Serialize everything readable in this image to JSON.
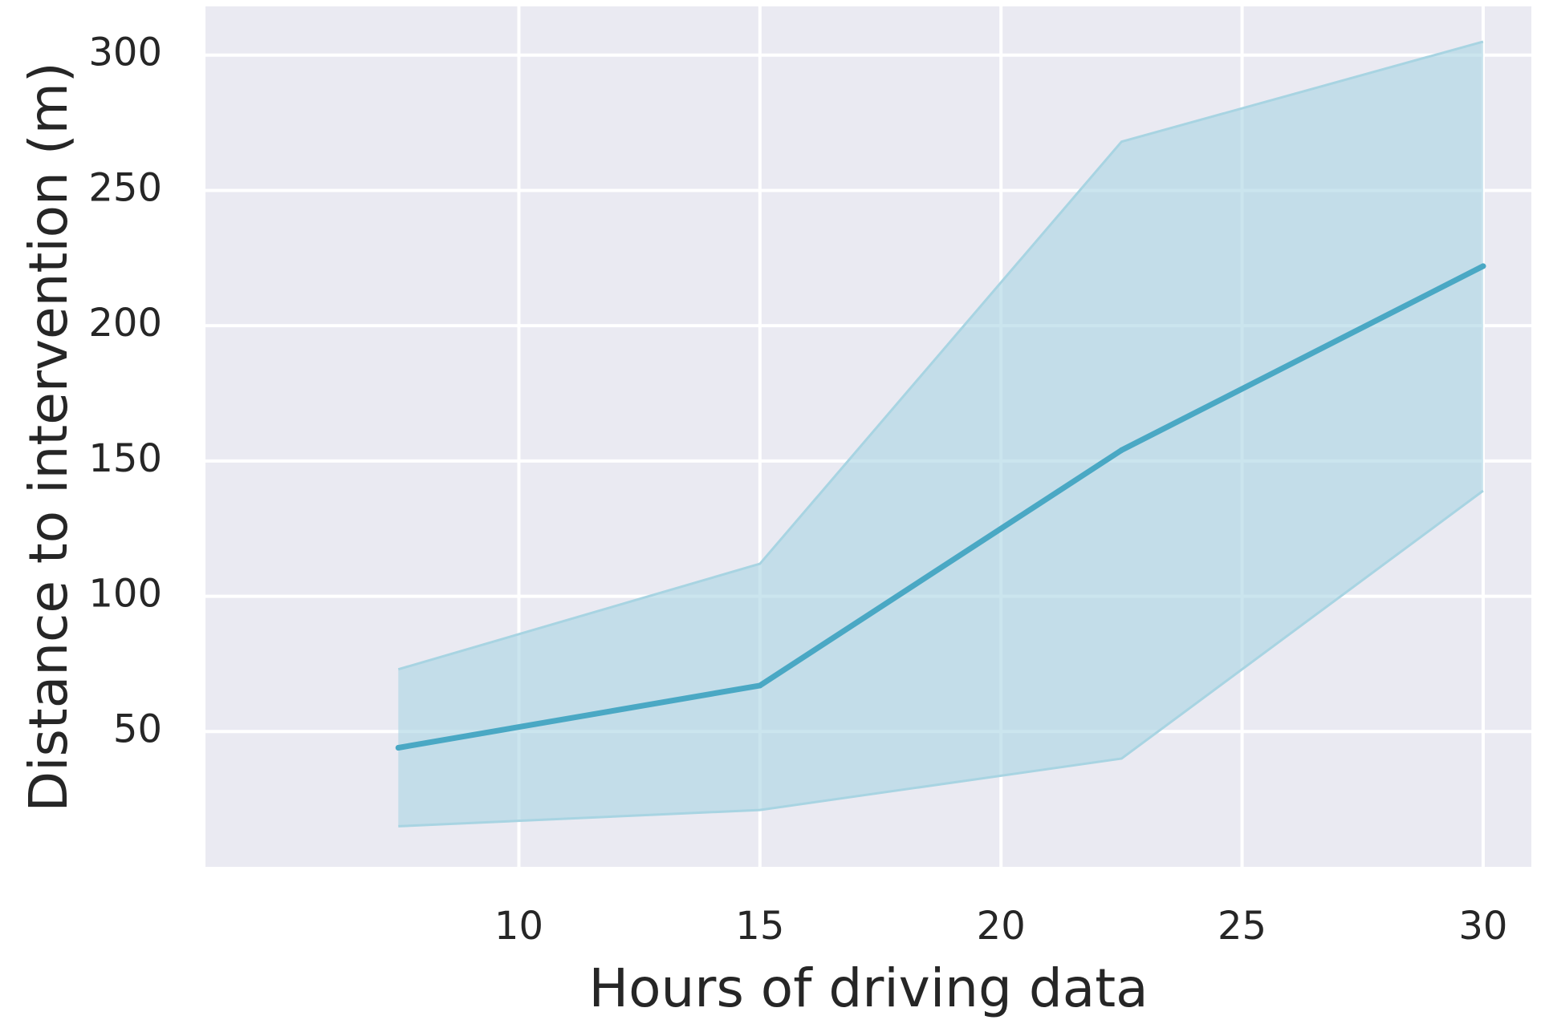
{
  "chart_data": {
    "type": "line",
    "xlabel": "Hours of driving data",
    "ylabel": "Distance to intervention (m)",
    "xlim": [
      3.5,
      31.0
    ],
    "ylim": [
      0,
      318
    ],
    "x_ticks": [
      10,
      15,
      20,
      25,
      30
    ],
    "y_ticks": [
      50,
      100,
      150,
      200,
      250,
      300
    ],
    "grid": true,
    "legend": "none",
    "series": [
      {
        "x": [
          7.5,
          15,
          22.5,
          30
        ],
        "y": [
          44,
          67,
          154,
          222
        ],
        "ci_low": [
          15,
          21,
          40,
          139
        ],
        "ci_high": [
          73,
          112,
          268,
          305
        ]
      }
    ],
    "colors": {
      "line": "#4aa8c4",
      "band": "#a8d4e2",
      "plot_background": "#eaeaf2",
      "grid": "#ffffff"
    }
  }
}
